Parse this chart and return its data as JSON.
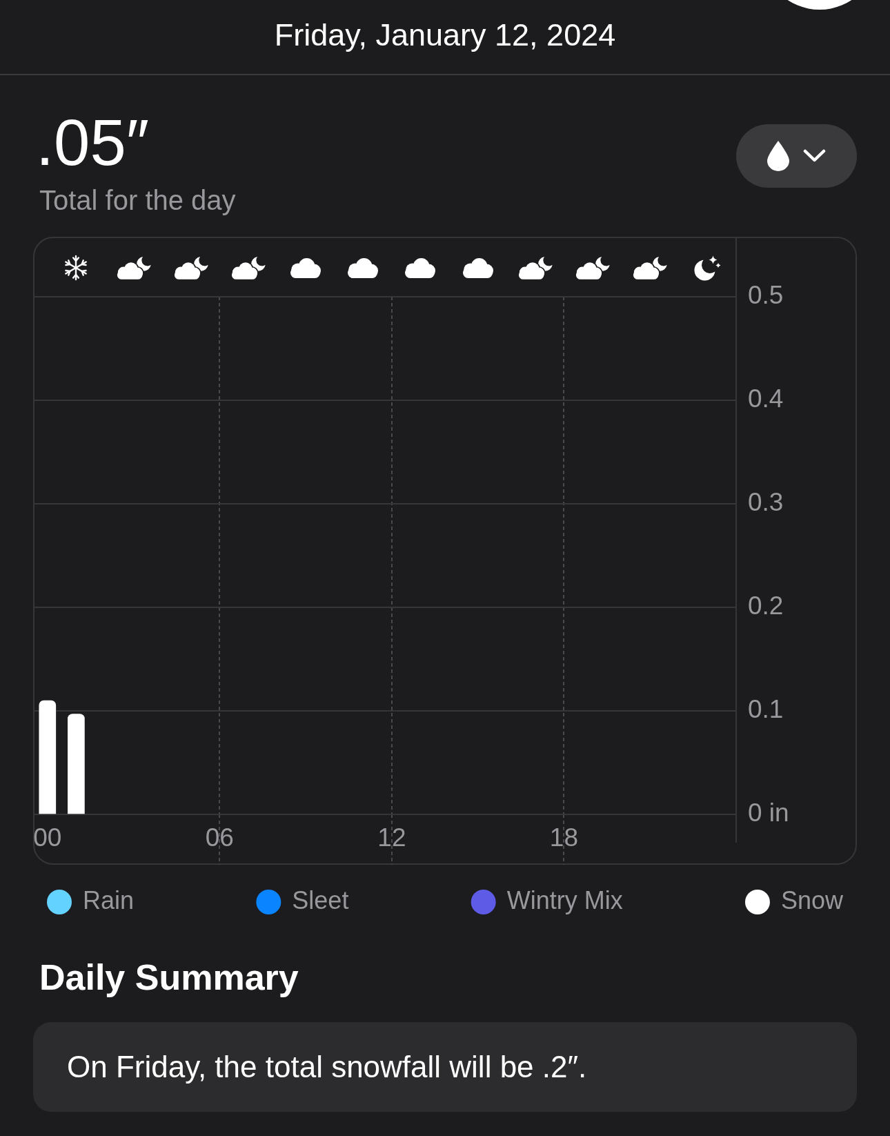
{
  "chart_data": {
    "type": "bar",
    "title": "Friday, January 12, 2024",
    "annotations": [
      ".05″",
      "Total for the day",
      "Daily Summary",
      "On Friday, the total snowfall will be .2″."
    ],
    "x": [
      0,
      1
    ],
    "xlim": [
      -0.5,
      24
    ],
    "xticks": [
      {
        "value": 0,
        "label": "00"
      },
      {
        "value": 6,
        "label": "06"
      },
      12,
      18
    ],
    "ylim": [
      0,
      0.5
    ],
    "yticks": [
      {
        "value": 0,
        "label": "0 in"
      },
      0.1,
      0.2,
      0.3,
      0.4,
      0.5
    ],
    "series": [
      {
        "name": "Rain",
        "color": "#64d2ff",
        "values": [
          null,
          null
        ]
      },
      {
        "name": "Sleet",
        "color": "#0a84ff",
        "values": [
          null,
          null
        ]
      },
      {
        "name": "Wintry Mix",
        "color": "#5e5ce6",
        "values": [
          null,
          null
        ]
      },
      {
        "name": "Snow",
        "color": "#ffffff",
        "values": [
          0.11,
          0.097
        ]
      }
    ],
    "grid": true,
    "legend": "bottom"
  }
}
